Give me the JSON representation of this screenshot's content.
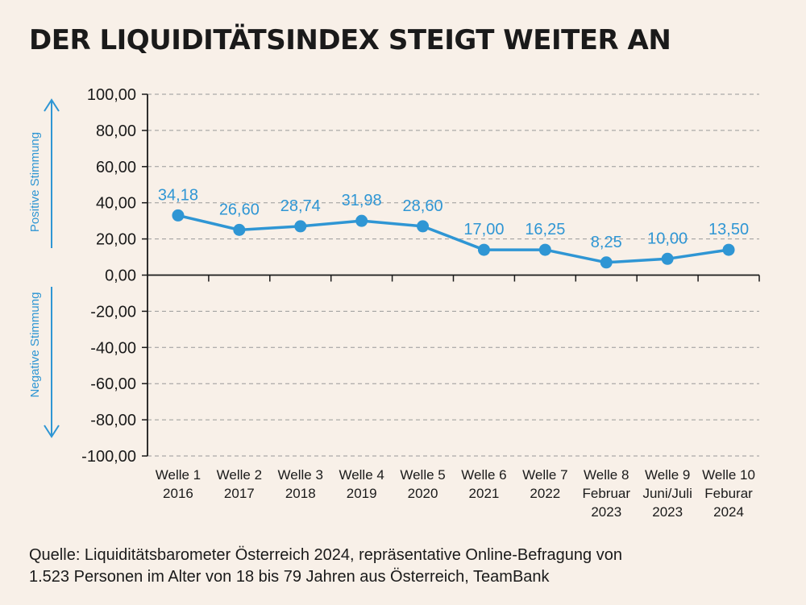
{
  "title": "DER LIQUIDITÄTSINDEX STEIGT WEITER AN",
  "source_line1": "Quelle: Liquiditätsbarometer Österreich 2024, repräsentative Online-Befragung von",
  "source_line2": "1.523 Personen im Alter von 18 bis 79 Jahren aus Österreich, TeamBank",
  "colors": {
    "accent": "#2f96d4",
    "background": "#f8f0e8",
    "text": "#1a1a1a",
    "grid": "#999999"
  },
  "chart_data": {
    "type": "line",
    "title": "DER LIQUIDITÄTSINDEX STEIGT WEITER AN",
    "categories": [
      [
        "Welle 1",
        "2016"
      ],
      [
        "Welle 2",
        "2017"
      ],
      [
        "Welle 3",
        "2018"
      ],
      [
        "Welle 4",
        "2019"
      ],
      [
        "Welle 5",
        "2020"
      ],
      [
        "Welle 6",
        "2021"
      ],
      [
        "Welle 7",
        "2022"
      ],
      [
        "Welle 8",
        "Februar",
        "2023"
      ],
      [
        "Welle 9",
        "Juni/Juli",
        "2023"
      ],
      [
        "Welle 10",
        "Feburar",
        "2024"
      ]
    ],
    "series": [
      {
        "values": [
          34.18,
          26.6,
          28.74,
          31.98,
          28.6,
          17.0,
          16.25,
          8.25,
          10.0,
          13.5
        ],
        "labels": [
          "34,18",
          "26,60",
          "28,74",
          "31,98",
          "28,60",
          "17,00",
          "16,25",
          "8,25",
          "10,00",
          "13,50"
        ],
        "plotted_values": [
          33,
          25,
          27,
          30,
          27,
          14,
          14,
          7,
          9,
          14
        ]
      }
    ],
    "y_ticks": [
      100,
      80,
      60,
      40,
      20,
      0,
      -20,
      -40,
      -60,
      -80,
      -100
    ],
    "y_tick_labels": [
      "100,00",
      "80,00",
      "60,00",
      "40,00",
      "20,00",
      "0,00",
      "-20,00",
      "-40,00",
      "-60,00",
      "-80,00",
      "-100,00"
    ],
    "ylim": [
      -100,
      100
    ],
    "grid": "dashed horizontal",
    "side_labels": {
      "positive": "Positive Stimmung",
      "negative": "Negative Stimmung"
    }
  }
}
